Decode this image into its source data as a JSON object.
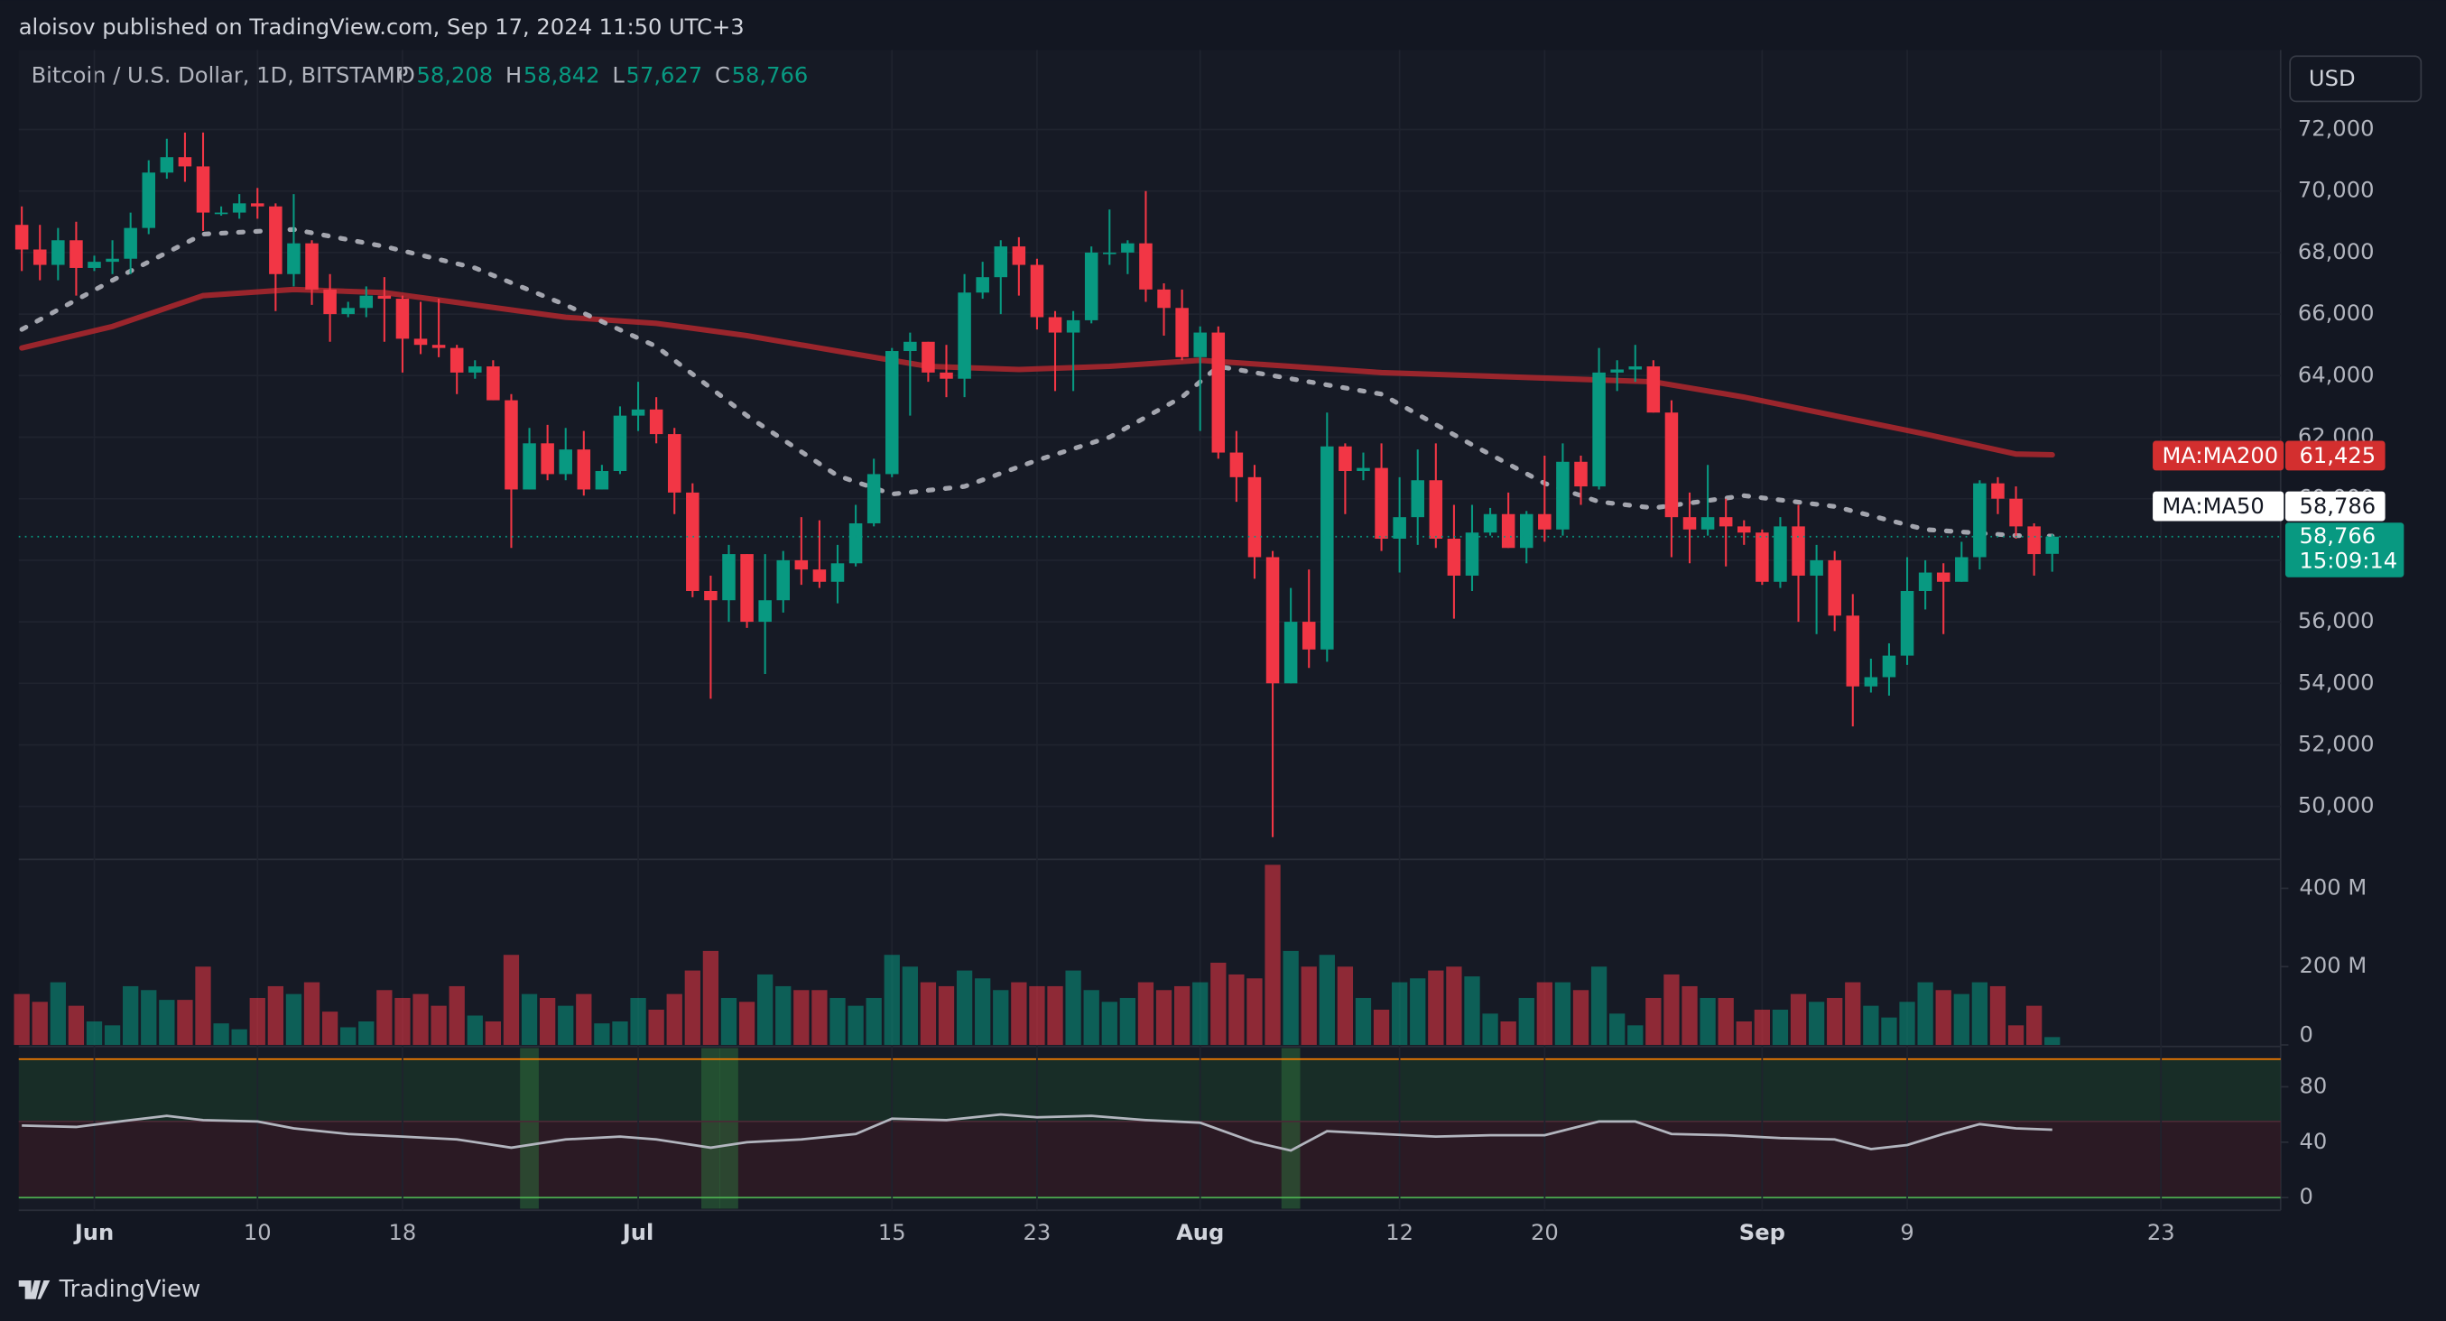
{
  "header": {
    "published": "aloisov published on TradingView.com, Sep 17, 2024 11:50 UTC+3",
    "logo": "TradingView"
  },
  "chart_data": {
    "type": "candlestick",
    "title": "Bitcoin / U.S. Dollar, 1D, BITSTAMP",
    "ohlc_legend": [
      {
        "key": "O",
        "value": "58,208"
      },
      {
        "key": "H",
        "value": "58,842"
      },
      {
        "key": "L",
        "value": "57,627"
      },
      {
        "key": "C",
        "value": "58,766"
      }
    ],
    "currency": "USD",
    "colors": {
      "up": "#089981",
      "down": "#f23645"
    },
    "grid": true,
    "candles": [
      [
        68900,
        69500,
        67400,
        68100
      ],
      [
        68100,
        68900,
        67100,
        67600
      ],
      [
        67600,
        68800,
        67100,
        68400
      ],
      [
        68400,
        69000,
        66600,
        67500
      ],
      [
        67500,
        67900,
        67400,
        67700
      ],
      [
        67700,
        68400,
        67300,
        67800
      ],
      [
        67800,
        69300,
        67300,
        68800
      ],
      [
        68800,
        71000,
        68600,
        70600
      ],
      [
        70600,
        71700,
        70400,
        71100
      ],
      [
        71100,
        71900,
        70300,
        70800
      ],
      [
        70800,
        71900,
        68700,
        69300
      ],
      [
        69300,
        69500,
        69200,
        69300
      ],
      [
        69300,
        69900,
        69100,
        69600
      ],
      [
        69600,
        70100,
        69100,
        69500
      ],
      [
        69500,
        69600,
        66100,
        67300
      ],
      [
        67300,
        69900,
        66900,
        68300
      ],
      [
        68300,
        68400,
        66300,
        66800
      ],
      [
        66800,
        67300,
        65100,
        66000
      ],
      [
        66000,
        66400,
        65900,
        66200
      ],
      [
        66200,
        66900,
        65900,
        66600
      ],
      [
        66600,
        67200,
        65100,
        66500
      ],
      [
        66500,
        66600,
        64100,
        65200
      ],
      [
        65200,
        66400,
        64700,
        65000
      ],
      [
        65000,
        66500,
        64600,
        64900
      ],
      [
        64900,
        65000,
        63400,
        64100
      ],
      [
        64100,
        64500,
        63900,
        64300
      ],
      [
        64300,
        64500,
        63200,
        63200
      ],
      [
        63200,
        63400,
        58400,
        60300
      ],
      [
        60300,
        62300,
        60300,
        61800
      ],
      [
        61800,
        62400,
        60600,
        60800
      ],
      [
        60800,
        62300,
        60600,
        61600
      ],
      [
        61600,
        62200,
        60100,
        60300
      ],
      [
        60300,
        61100,
        60300,
        60900
      ],
      [
        60900,
        63000,
        60800,
        62700
      ],
      [
        62700,
        63800,
        62200,
        62900
      ],
      [
        62900,
        63300,
        61800,
        62100
      ],
      [
        62100,
        62300,
        59500,
        60200
      ],
      [
        60200,
        60500,
        56800,
        57000
      ],
      [
        57000,
        57500,
        53500,
        56700
      ],
      [
        56700,
        58500,
        56000,
        58200
      ],
      [
        58200,
        58200,
        55800,
        56000
      ],
      [
        56000,
        58200,
        54300,
        56700
      ],
      [
        56700,
        58300,
        56300,
        58000
      ],
      [
        58000,
        59400,
        57200,
        57700
      ],
      [
        57700,
        59300,
        57100,
        57300
      ],
      [
        57300,
        58500,
        56600,
        57900
      ],
      [
        57900,
        59800,
        57800,
        59200
      ],
      [
        59200,
        61300,
        59100,
        60800
      ],
      [
        60800,
        64900,
        60700,
        64800
      ],
      [
        64800,
        65400,
        62700,
        65100
      ],
      [
        65100,
        65100,
        63800,
        64100
      ],
      [
        64100,
        65000,
        63300,
        63900
      ],
      [
        63900,
        67300,
        63300,
        66700
      ],
      [
        66700,
        67700,
        66500,
        67200
      ],
      [
        67200,
        68400,
        66000,
        68200
      ],
      [
        68200,
        68500,
        66600,
        67600
      ],
      [
        67600,
        67800,
        65500,
        65900
      ],
      [
        65900,
        66100,
        63500,
        65400
      ],
      [
        65400,
        66100,
        63500,
        65800
      ],
      [
        65800,
        68200,
        65700,
        68000
      ],
      [
        68000,
        69400,
        67600,
        68000
      ],
      [
        68000,
        68400,
        67300,
        68300
      ],
      [
        68300,
        70000,
        66400,
        66800
      ],
      [
        66800,
        67000,
        65300,
        66200
      ],
      [
        66200,
        66800,
        64500,
        64600
      ],
      [
        64600,
        65600,
        62200,
        65400
      ],
      [
        65400,
        65600,
        61300,
        61500
      ],
      [
        61500,
        62200,
        59900,
        60700
      ],
      [
        60700,
        61100,
        57400,
        58100
      ],
      [
        58100,
        58300,
        49000,
        54000
      ],
      [
        54000,
        57100,
        54000,
        56000
      ],
      [
        56000,
        57700,
        54500,
        55100
      ],
      [
        55100,
        62800,
        54700,
        61700
      ],
      [
        61700,
        61800,
        59500,
        60900
      ],
      [
        60900,
        61500,
        60600,
        61000
      ],
      [
        61000,
        61800,
        58300,
        58700
      ],
      [
        58700,
        60700,
        57600,
        59400
      ],
      [
        59400,
        61600,
        58500,
        60600
      ],
      [
        60600,
        61800,
        58400,
        58700
      ],
      [
        58700,
        59800,
        56100,
        57500
      ],
      [
        57500,
        59800,
        57000,
        58900
      ],
      [
        58900,
        59700,
        58800,
        59500
      ],
      [
        59500,
        60200,
        58400,
        58400
      ],
      [
        58400,
        59600,
        57900,
        59500
      ],
      [
        59500,
        61400,
        58600,
        59000
      ],
      [
        59000,
        61800,
        58800,
        61200
      ],
      [
        61200,
        61400,
        59800,
        60400
      ],
      [
        60400,
        64900,
        60300,
        64100
      ],
      [
        64100,
        64500,
        63500,
        64200
      ],
      [
        64200,
        65000,
        63800,
        64300
      ],
      [
        64300,
        64500,
        62800,
        62800
      ],
      [
        62800,
        63200,
        58100,
        59400
      ],
      [
        59400,
        60200,
        57900,
        59000
      ],
      [
        59000,
        61100,
        58800,
        59400
      ],
      [
        59400,
        60000,
        57800,
        59100
      ],
      [
        59100,
        59300,
        58500,
        58900
      ],
      [
        58900,
        59000,
        57200,
        57300
      ],
      [
        57300,
        59400,
        57100,
        59100
      ],
      [
        59100,
        59800,
        56000,
        57500
      ],
      [
        57500,
        58500,
        55600,
        58000
      ],
      [
        58000,
        58300,
        55700,
        56200
      ],
      [
        56200,
        56900,
        52600,
        53900
      ],
      [
        53900,
        54800,
        53700,
        54200
      ],
      [
        54200,
        55300,
        53600,
        54900
      ],
      [
        54900,
        58100,
        54600,
        57000
      ],
      [
        57000,
        58000,
        56400,
        57600
      ],
      [
        57600,
        57900,
        55600,
        57300
      ],
      [
        57300,
        58600,
        57300,
        58100
      ],
      [
        58100,
        60600,
        57700,
        60500
      ],
      [
        60500,
        60700,
        59500,
        60000
      ],
      [
        60000,
        60400,
        58700,
        59100
      ],
      [
        59100,
        59200,
        57500,
        58200
      ],
      [
        58208,
        58842,
        57627,
        58766
      ]
    ],
    "xlim": [
      -0.17,
      124.6
    ],
    "xticks": [
      {
        "value": 4,
        "label": "Jun"
      },
      {
        "value": 13,
        "label": "10"
      },
      {
        "value": 21,
        "label": "18"
      },
      {
        "value": 34,
        "label": "Jul"
      },
      {
        "value": 48,
        "label": "15"
      },
      {
        "value": 56,
        "label": "23"
      },
      {
        "value": 65,
        "label": "Aug"
      },
      {
        "value": 76,
        "label": "12"
      },
      {
        "value": 84,
        "label": "20"
      },
      {
        "value": 96,
        "label": "Sep"
      },
      {
        "value": 104,
        "label": "9"
      },
      {
        "value": 118,
        "label": "23"
      }
    ],
    "ylim": [
      48330,
      74585
    ],
    "yticks": [
      {
        "value": 50000,
        "label": "50,000"
      },
      {
        "value": 52000,
        "label": "52,000"
      },
      {
        "value": 54000,
        "label": "54,000"
      },
      {
        "value": 56000,
        "label": "56,000"
      },
      {
        "value": 58000,
        "label": "58,000"
      },
      {
        "value": 60000,
        "label": "60,000"
      },
      {
        "value": 62000,
        "label": "62,000"
      },
      {
        "value": 64000,
        "label": "64,000"
      },
      {
        "value": 66000,
        "label": "66,000"
      },
      {
        "value": 68000,
        "label": "68,000"
      },
      {
        "value": 70000,
        "label": "70,000"
      },
      {
        "value": 72000,
        "label": "72,000"
      }
    ],
    "lines": [
      {
        "name": "MA:MA200",
        "color": "#b2282e",
        "style": "solid",
        "last_label": "61,425",
        "x": [
          0,
          5,
          10,
          15,
          20,
          25,
          30,
          35,
          40,
          45,
          50,
          55,
          60,
          65,
          70,
          75,
          80,
          85,
          90,
          95,
          100,
          105,
          110,
          112
        ],
        "values": [
          64900,
          65600,
          66600,
          66800,
          66700,
          66300,
          65900,
          65700,
          65300,
          64800,
          64300,
          64200,
          64300,
          64500,
          64300,
          64100,
          64000,
          63900,
          63800,
          63300,
          62700,
          62100,
          61450,
          61425
        ]
      },
      {
        "name": "MA:MA50",
        "color": "#b2b5be",
        "style": "dotted",
        "last_label": "58,786",
        "x": [
          0,
          5,
          10,
          15,
          20,
          25,
          30,
          35,
          40,
          45,
          48,
          52,
          56,
          60,
          64,
          66,
          70,
          75,
          80,
          84,
          87,
          90,
          95,
          100,
          105,
          110,
          112
        ],
        "values": [
          65500,
          67100,
          68600,
          68750,
          68200,
          67500,
          66300,
          64950,
          62700,
          60750,
          60150,
          60400,
          61250,
          62000,
          63300,
          64300,
          63900,
          63400,
          61750,
          60500,
          59900,
          59700,
          60100,
          59750,
          59000,
          58800,
          58786
        ]
      }
    ],
    "last_price": {
      "value": 58766,
      "label": "58,766",
      "countdown": "15:09:14"
    },
    "volume": {
      "values": [
        130,
        110,
        160,
        100,
        60,
        50,
        150,
        140,
        115,
        115,
        200,
        55,
        40,
        120,
        150,
        130,
        160,
        85,
        45,
        60,
        140,
        120,
        130,
        100,
        150,
        75,
        60,
        230,
        130,
        120,
        100,
        130,
        55,
        60,
        120,
        90,
        130,
        190,
        240,
        120,
        110,
        180,
        150,
        140,
        140,
        120,
        100,
        120,
        230,
        200,
        160,
        150,
        190,
        170,
        140,
        160,
        150,
        150,
        190,
        140,
        110,
        120,
        160,
        140,
        150,
        160,
        210,
        180,
        170,
        460,
        240,
        200,
        230,
        200,
        120,
        90,
        160,
        170,
        190,
        200,
        175,
        80,
        60,
        120,
        160,
        160,
        140,
        200,
        80,
        50,
        120,
        180,
        150,
        120,
        120,
        60,
        90,
        90,
        130,
        110,
        120,
        160,
        100,
        70,
        110,
        160,
        140,
        130,
        160,
        150,
        50,
        100,
        20
      ],
      "ylim": [
        0,
        470
      ],
      "yticks": [
        0,
        {
          "value": 200,
          "label": "200 M"
        },
        {
          "value": 400,
          "label": "400 M"
        }
      ]
    },
    "rsi": {
      "color": "#b2b5be",
      "x": [
        0,
        3,
        6,
        8,
        10,
        13,
        15,
        18,
        21,
        24,
        27,
        30,
        33,
        35,
        38,
        40,
        43,
        46,
        48,
        51,
        54,
        56,
        59,
        62,
        65,
        68,
        70,
        72,
        75,
        78,
        81,
        84,
        87,
        89,
        91,
        94,
        97,
        100,
        102,
        104,
        106,
        108,
        110,
        112
      ],
      "values": [
        52,
        51,
        56,
        59,
        56,
        55,
        50,
        46,
        44,
        42,
        36,
        42,
        44,
        42,
        36,
        40,
        42,
        46,
        57,
        56,
        60,
        58,
        59,
        56,
        54,
        40,
        34,
        48,
        46,
        44,
        45,
        45,
        55,
        55,
        46,
        45,
        43,
        42,
        35,
        38,
        46,
        53,
        50,
        49
      ],
      "ylim": [
        -8,
        108
      ],
      "yticks": [
        0,
        40,
        80
      ],
      "levels": [
        0,
        55,
        100
      ],
      "highlights": [
        28,
        38,
        39,
        70
      ]
    }
  }
}
